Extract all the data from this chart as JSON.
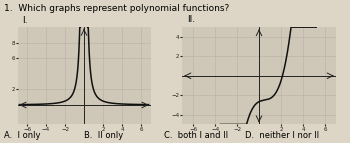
{
  "title": "1.  Which graphs represent polynomial functions?",
  "title_fontsize": 6.5,
  "bg_color": "#ddd5c5",
  "graph_bg": "#cfc7b7",
  "grid_color": "#b8b0a0",
  "axis_color": "#222222",
  "curve_color": "#111111",
  "label_I": "I.",
  "label_II": "II.",
  "answers": [
    "A.  I only",
    "B.  II only",
    "C.  both I and II",
    "D.  neither I nor II"
  ],
  "answer_fontsize": 6.0,
  "graph1_xlim": [
    -7,
    7
  ],
  "graph1_ylim": [
    -2.5,
    10
  ],
  "graph1_xticks": [
    -6,
    -4,
    -2,
    2,
    4,
    6
  ],
  "graph1_yticks": [
    2,
    6,
    8
  ],
  "graph2_xlim": [
    -7,
    7
  ],
  "graph2_ylim": [
    -5,
    5
  ],
  "graph2_xticks": [
    -6,
    -4,
    -2,
    2,
    4,
    6
  ],
  "graph2_yticks": [
    -4,
    -2,
    2,
    4
  ]
}
